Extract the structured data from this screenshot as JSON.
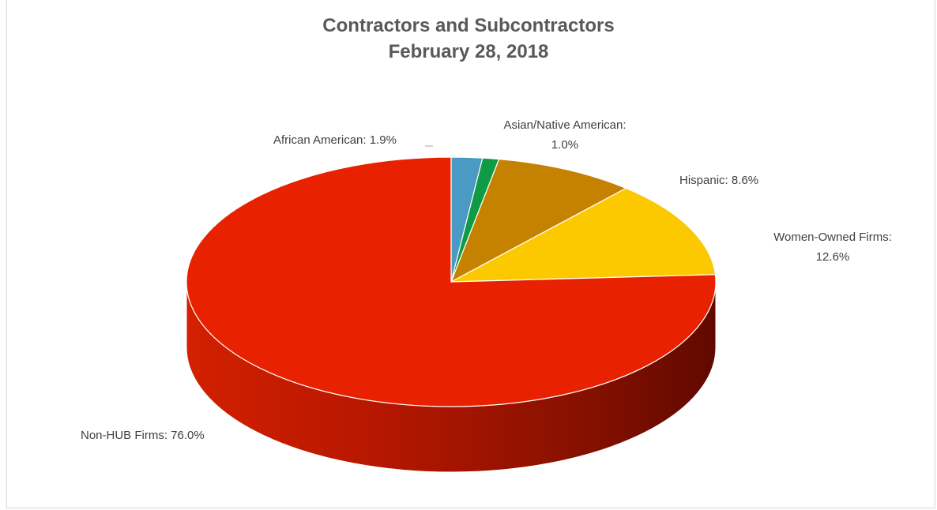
{
  "chart_data": {
    "type": "pie",
    "title": "Contractors and Subcontractors",
    "subtitle": "February 28, 2018",
    "slices": [
      {
        "label": "African American",
        "value": 1.9,
        "display": "African American: 1.9%",
        "color": "#4a9ac4"
      },
      {
        "label": "Asian/Native American",
        "value": 1.0,
        "display": "Asian/Native American: 1.0%",
        "color": "#0f9a45"
      },
      {
        "label": "Hispanic",
        "value": 8.6,
        "display": "Hispanic: 8.6%",
        "color": "#c58200"
      },
      {
        "label": "Women-Owned Firms",
        "value": 12.6,
        "display": "Women-Owned Firms: 12.6%",
        "color": "#fcc800"
      },
      {
        "label": "Non-HUB Firms",
        "value": 76.0,
        "display": "Non-HUB Firms: 76.0%",
        "color": "#e82200"
      }
    ],
    "start_angle": "12 o'clock, clockwise",
    "style": "3D"
  }
}
